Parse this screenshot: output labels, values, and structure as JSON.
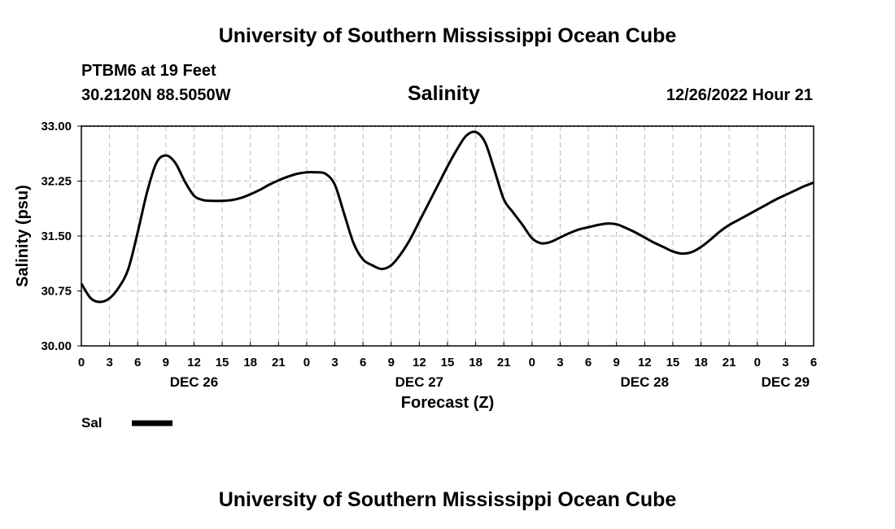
{
  "header": {
    "title": "University of Southern Mississippi Ocean Cube",
    "station": "PTBM6 at 19 Feet",
    "location": "30.2120N  88.5050W",
    "chart_title": "Salinity",
    "datetime": "12/26/2022 Hour 21"
  },
  "footer": {
    "title": "University of Southern Mississippi Ocean Cube"
  },
  "chart_data": {
    "type": "line",
    "title": "Salinity",
    "xlabel": "Forecast (Z)",
    "ylabel": "Salinity (psu)",
    "ylim": [
      30.0,
      33.0
    ],
    "yticks": [
      "30.00",
      "30.75",
      "31.50",
      "32.25",
      "33.00"
    ],
    "xlim": [
      0,
      78
    ],
    "xtick_labels": [
      "0",
      "3",
      "6",
      "9",
      "12",
      "15",
      "18",
      "21",
      "0",
      "3",
      "6",
      "9",
      "12",
      "15",
      "18",
      "21",
      "0",
      "3",
      "6",
      "9",
      "12",
      "15",
      "18",
      "21",
      "0",
      "3",
      "6"
    ],
    "date_labels": [
      {
        "label": "DEC 26",
        "hour": 12
      },
      {
        "label": "DEC 27",
        "hour": 36
      },
      {
        "label": "DEC 28",
        "hour": 60
      },
      {
        "label": "DEC 29",
        "hour": 75
      }
    ],
    "grid": true,
    "legend": "bottom-left",
    "series": [
      {
        "name": "Sal",
        "color": "#000000",
        "x": [
          0,
          1,
          2,
          3,
          4,
          5,
          6,
          7,
          8,
          9,
          10,
          11,
          12,
          13,
          14,
          15,
          16,
          17,
          18,
          19,
          20,
          21,
          22,
          23,
          24,
          25,
          26,
          27,
          28,
          29,
          30,
          31,
          32,
          33,
          34,
          35,
          36,
          37,
          38,
          39,
          40,
          41,
          42,
          43,
          44,
          45,
          46,
          47,
          48,
          49,
          50,
          51,
          52,
          53,
          54,
          55,
          56,
          57,
          58,
          59,
          60,
          61,
          62,
          63,
          64,
          65,
          66,
          67,
          68,
          69,
          70,
          71,
          72,
          73,
          74,
          75,
          76,
          77,
          78
        ],
        "y": [
          30.85,
          30.65,
          30.6,
          30.65,
          30.8,
          31.05,
          31.55,
          32.1,
          32.5,
          32.6,
          32.5,
          32.25,
          32.05,
          31.99,
          31.98,
          31.98,
          31.99,
          32.02,
          32.07,
          32.13,
          32.2,
          32.26,
          32.31,
          32.35,
          32.37,
          32.37,
          32.35,
          32.2,
          31.8,
          31.4,
          31.18,
          31.1,
          31.05,
          31.1,
          31.25,
          31.45,
          31.7,
          31.95,
          32.2,
          32.45,
          32.68,
          32.87,
          32.92,
          32.78,
          32.4,
          32.0,
          31.82,
          31.65,
          31.47,
          31.4,
          31.42,
          31.48,
          31.54,
          31.59,
          31.62,
          31.65,
          31.67,
          31.66,
          31.61,
          31.55,
          31.48,
          31.41,
          31.35,
          31.29,
          31.26,
          31.28,
          31.35,
          31.45,
          31.56,
          31.65,
          31.72,
          31.79,
          31.86,
          31.93,
          32.0,
          32.06,
          32.12,
          32.18,
          32.23
        ]
      }
    ]
  }
}
